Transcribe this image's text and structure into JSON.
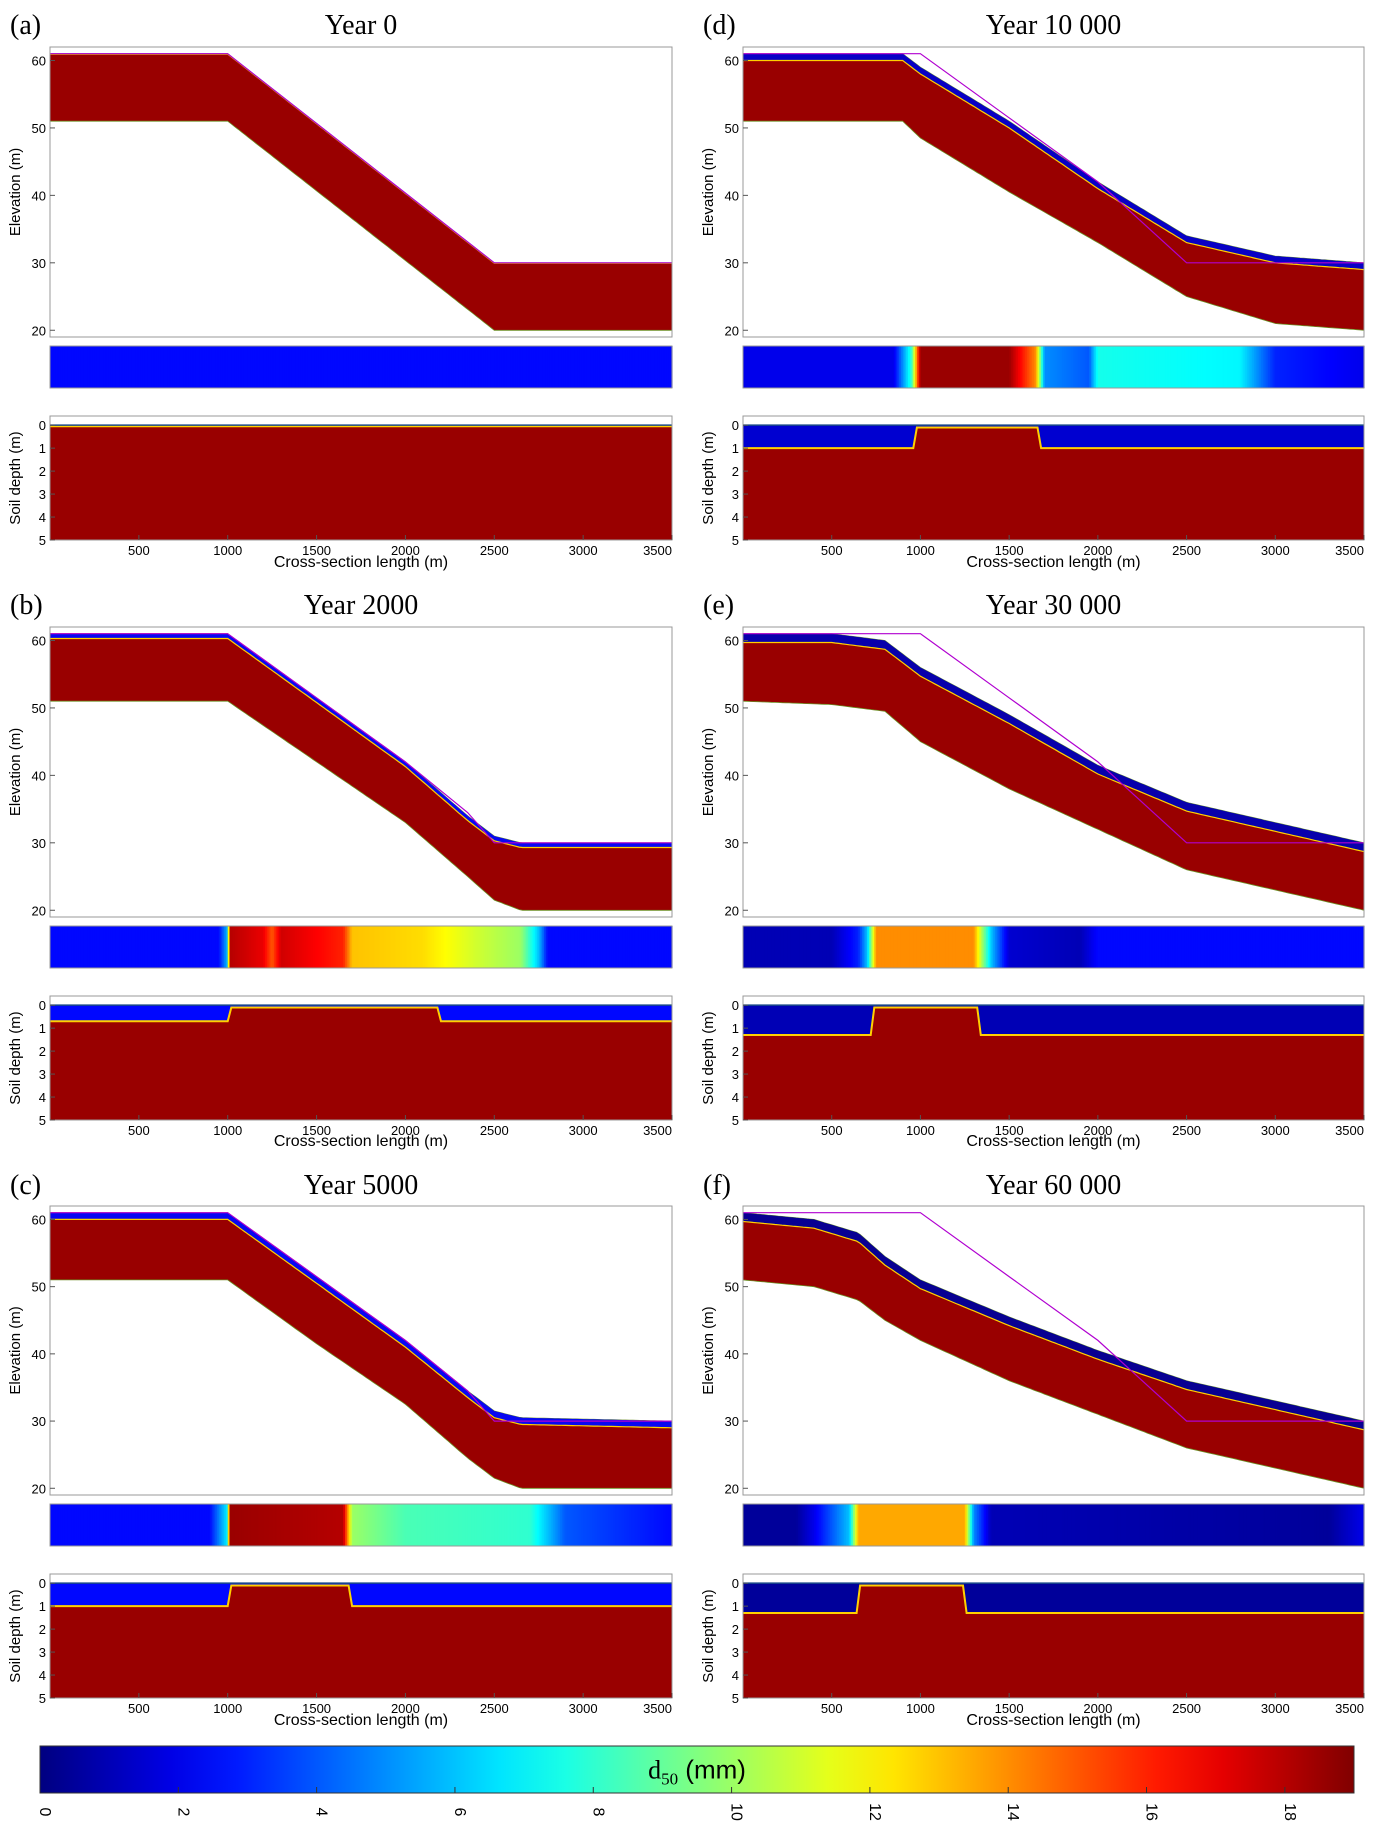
{
  "figure": {
    "colorbar": {
      "label_main": "d",
      "label_sub": "50",
      "label_unit": " (mm)",
      "min": 0,
      "max": 19,
      "ticks": [
        "0",
        "2",
        "4",
        "6",
        "8",
        "10",
        "12",
        "14",
        "16",
        "18"
      ],
      "colormap": "jet"
    },
    "axis_labels": {
      "elevation": "Elevation (m)",
      "depth": "Soil depth (m)",
      "x": "Cross-section length (m)"
    },
    "elev_ticks": [
      "20",
      "30",
      "40",
      "50",
      "60"
    ],
    "depth_ticks": [
      "0",
      "1",
      "2",
      "3",
      "4",
      "5"
    ],
    "x_ticks": [
      "500",
      "1000",
      "1500",
      "2000",
      "2500",
      "3000",
      "3500"
    ]
  },
  "chart_data": [
    {
      "type": "heatmap",
      "panel_label": "(a)",
      "title": "Year 0",
      "xlim": [
        0,
        3500
      ],
      "elev_ylim": [
        19,
        62
      ],
      "depth_ylim": [
        5,
        -0.4
      ],
      "surface_x": [
        0,
        1000,
        2500,
        3500
      ],
      "surface_y": [
        61,
        61,
        30,
        30
      ],
      "initial_surface_y": [
        61,
        61,
        30,
        30
      ],
      "bedrock_y": [
        51,
        51,
        20,
        20
      ],
      "armor_d50": 2.5,
      "armor_depth_m": 0.05,
      "surface_d50_profile": [
        [
          0,
          2.5
        ],
        [
          3500,
          2.5
        ]
      ]
    },
    {
      "type": "heatmap",
      "panel_label": "(b)",
      "title": "Year 2000",
      "xlim": [
        0,
        3500
      ],
      "elev_ylim": [
        19,
        62
      ],
      "depth_ylim": [
        5,
        -0.4
      ],
      "surface_x": [
        0,
        1000,
        1500,
        2000,
        2350,
        2500,
        2650,
        3500
      ],
      "surface_y": [
        61,
        61,
        51.5,
        42,
        34,
        31,
        30,
        30
      ],
      "initial_surface_y": [
        61,
        61,
        51.5,
        42,
        34.5,
        30,
        30,
        30
      ],
      "bedrock_y": [
        51,
        51,
        42,
        33,
        25,
        21.5,
        20,
        20
      ],
      "armor_d50": 2.5,
      "armor_depth_m": 0.7,
      "surface_d50_profile": [
        [
          0,
          2.5
        ],
        [
          950,
          2.5
        ],
        [
          1000,
          6
        ],
        [
          1010,
          18
        ],
        [
          1200,
          17
        ],
        [
          1250,
          15
        ],
        [
          1300,
          17.5
        ],
        [
          1650,
          16
        ],
        [
          1700,
          13
        ],
        [
          2100,
          12.5
        ],
        [
          2400,
          11
        ],
        [
          2650,
          10
        ],
        [
          2750,
          6
        ],
        [
          2800,
          2.5
        ],
        [
          3500,
          2.5
        ]
      ]
    },
    {
      "type": "heatmap",
      "panel_label": "(c)",
      "title": "Year 5000",
      "xlim": [
        0,
        3500
      ],
      "elev_ylim": [
        19,
        62
      ],
      "depth_ylim": [
        5,
        -0.4
      ],
      "surface_x": [
        0,
        1000,
        1500,
        2000,
        2350,
        2500,
        2650,
        3500
      ],
      "surface_y": [
        61,
        61,
        51.5,
        42,
        34.5,
        31.5,
        30.5,
        30
      ],
      "initial_surface_y": [
        61,
        61,
        51.5,
        42,
        34.5,
        30,
        30,
        30
      ],
      "bedrock_y": [
        51,
        51,
        41.5,
        32.5,
        24.5,
        21.5,
        20,
        20
      ],
      "armor_d50": 2.5,
      "armor_depth_m": 1.0,
      "surface_d50_profile": [
        [
          0,
          2.5
        ],
        [
          900,
          2.5
        ],
        [
          1000,
          7
        ],
        [
          1010,
          18.5
        ],
        [
          1650,
          18
        ],
        [
          1700,
          10
        ],
        [
          2000,
          8.5
        ],
        [
          2700,
          8
        ],
        [
          2900,
          4
        ],
        [
          3500,
          2.5
        ]
      ]
    },
    {
      "type": "heatmap",
      "panel_label": "(d)",
      "title": "Year 10 000",
      "xlim": [
        0,
        3500
      ],
      "elev_ylim": [
        19,
        62
      ],
      "depth_ylim": [
        5,
        -0.4
      ],
      "surface_x": [
        0,
        900,
        1000,
        1500,
        2000,
        2500,
        3000,
        3500
      ],
      "surface_y": [
        61,
        61,
        59,
        51,
        42,
        34,
        31,
        30
      ],
      "initial_surface_y": [
        61,
        61,
        61,
        51.5,
        42,
        30,
        30,
        30
      ],
      "bedrock_y": [
        51,
        51,
        48.5,
        40.5,
        33,
        25,
        21,
        20
      ],
      "armor_d50": 1.5,
      "armor_depth_m": 1.0,
      "surface_d50_profile": [
        [
          0,
          2
        ],
        [
          850,
          2
        ],
        [
          950,
          8
        ],
        [
          1000,
          18.5
        ],
        [
          1500,
          18.5
        ],
        [
          1650,
          14
        ],
        [
          1700,
          5
        ],
        [
          1950,
          4
        ],
        [
          2000,
          7.5
        ],
        [
          2800,
          7
        ],
        [
          3000,
          3
        ],
        [
          3500,
          2
        ]
      ]
    },
    {
      "type": "heatmap",
      "panel_label": "(e)",
      "title": "Year 30 000",
      "xlim": [
        0,
        3500
      ],
      "elev_ylim": [
        19,
        62
      ],
      "depth_ylim": [
        5,
        -0.4
      ],
      "surface_x": [
        0,
        500,
        800,
        1000,
        1500,
        2000,
        2500,
        3000,
        3500
      ],
      "surface_y": [
        61,
        61,
        60,
        56,
        49,
        41.5,
        36,
        33,
        30
      ],
      "initial_surface_y": [
        61,
        61,
        61,
        61,
        51.5,
        42,
        30,
        30,
        30
      ],
      "bedrock_y": [
        51,
        50.5,
        49.5,
        45,
        38,
        32,
        26,
        23,
        20
      ],
      "armor_d50": 1.0,
      "armor_depth_m": 1.3,
      "surface_d50_profile": [
        [
          0,
          1
        ],
        [
          500,
          1
        ],
        [
          650,
          3
        ],
        [
          700,
          6
        ],
        [
          750,
          14
        ],
        [
          1300,
          14
        ],
        [
          1400,
          6
        ],
        [
          1500,
          1.5
        ],
        [
          1900,
          1
        ],
        [
          2000,
          2.5
        ],
        [
          3500,
          2.5
        ]
      ]
    },
    {
      "type": "heatmap",
      "panel_label": "(f)",
      "title": "Year 60 000",
      "xlim": [
        0,
        3500
      ],
      "elev_ylim": [
        19,
        62
      ],
      "depth_ylim": [
        5,
        -0.4
      ],
      "surface_x": [
        0,
        400,
        650,
        800,
        1000,
        1500,
        2000,
        2500,
        3000,
        3500
      ],
      "surface_y": [
        61,
        60,
        58,
        54.5,
        51,
        45.5,
        40.5,
        36,
        33,
        30
      ],
      "initial_surface_y": [
        61,
        61,
        61,
        61,
        61,
        51.5,
        42,
        30,
        30,
        30
      ],
      "bedrock_y": [
        51,
        50,
        48,
        45,
        42,
        36,
        31,
        26,
        23,
        20
      ],
      "armor_d50": 0.5,
      "armor_depth_m": 1.3,
      "surface_d50_profile": [
        [
          0,
          0.5
        ],
        [
          300,
          0.5
        ],
        [
          400,
          2
        ],
        [
          600,
          6
        ],
        [
          650,
          13.5
        ],
        [
          1250,
          13.5
        ],
        [
          1300,
          5
        ],
        [
          1400,
          1
        ],
        [
          3300,
          0.5
        ],
        [
          3500,
          2
        ]
      ]
    }
  ]
}
